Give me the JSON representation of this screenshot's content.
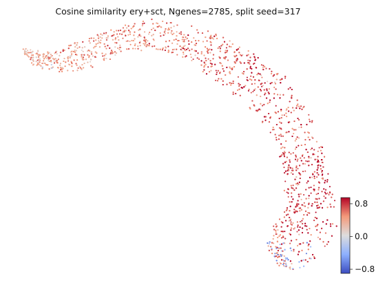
{
  "chart_data": {
    "type": "scatter",
    "title": "Cosine similarity ery+sct, Ngenes=2785, split seed=317",
    "xlabel": "",
    "ylabel": "",
    "axes_visible": false,
    "grid": false,
    "colormap": "coolwarm",
    "colorbar": {
      "placement": "right",
      "range": [
        -0.9,
        0.95
      ],
      "ticks": [
        0.8,
        0.0,
        -0.8
      ],
      "tick_labels": [
        "0.8",
        "0.0",
        "−0.8"
      ]
    },
    "shape": "arc",
    "arc_segments": [
      {
        "label_region": "upper-left tail",
        "similarity_mean": 0.35
      },
      {
        "label_region": "top",
        "similarity_mean": 0.5
      },
      {
        "label_region": "upper-right bend",
        "similarity_mean": 0.72
      },
      {
        "label_region": "lower-right bulk",
        "similarity_mean": 0.82
      },
      {
        "label_region": "bottom edge",
        "similarity_mean": -0.3
      }
    ]
  },
  "colors": {
    "cmap_low": "#3b4cc0",
    "cmap_mid": "#dddddd",
    "cmap_high": "#b40426"
  }
}
